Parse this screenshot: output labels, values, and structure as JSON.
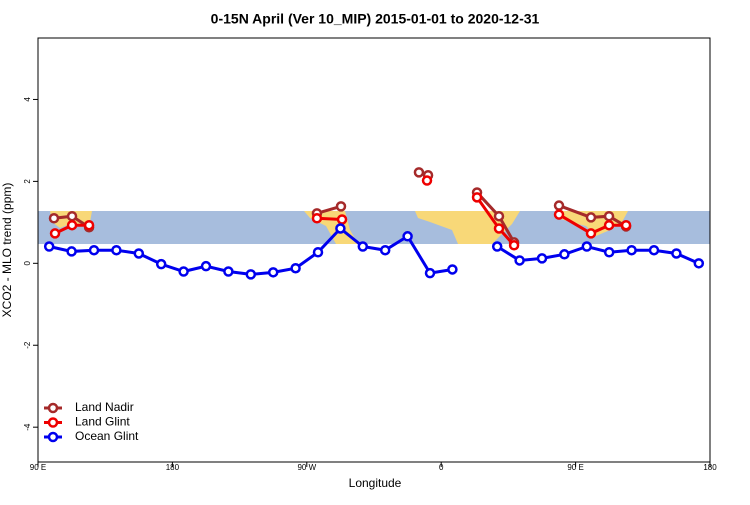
{
  "chart_data": {
    "type": "line",
    "title": "0-15N April (Ver 10_MIP)   2015-01-01 to 2020-12-31",
    "xlabel": "Longitude",
    "ylabel": "XCO2 - MLO trend (ppm)",
    "xlim": [
      90,
      540
    ],
    "xticks": [
      {
        "value": 90,
        "label": "90 E"
      },
      180,
      {
        "value": 270,
        "label": "90 W"
      },
      {
        "value": 360,
        "label": "0"
      },
      {
        "value": 450,
        "label": "90 E"
      },
      {
        "value": 540,
        "label": "180"
      }
    ],
    "ylim": [
      -4.85,
      5.5
    ],
    "yticks": [
      -4,
      -2,
      0,
      2,
      4
    ],
    "legend": "bottom-left",
    "series": [
      {
        "name": "Land Nadir",
        "color": "#a52a2a",
        "x": [
          100.7,
          112.8,
          124.2,
          null,
          276.8,
          292.9,
          null,
          345.1,
          351.2,
          null,
          384,
          398.7,
          408.8,
          null,
          438.9,
          460.3,
          472.4,
          483.8
        ],
        "values": [
          1.1,
          1.15,
          0.88,
          null,
          1.22,
          1.39,
          null,
          2.22,
          2.15,
          null,
          1.73,
          1.15,
          0.51,
          null,
          1.41,
          1.12,
          1.15,
          0.9
        ]
      },
      {
        "name": "Land Glint",
        "color": "#ee0000",
        "x": [
          101.4,
          112.8,
          124.2,
          null,
          276.8,
          293.6,
          null,
          350.5,
          null,
          384,
          398.7,
          408.8,
          null,
          438.9,
          460.3,
          472.4,
          483.8
        ],
        "values": [
          0.73,
          0.93,
          0.93,
          null,
          1.1,
          1.07,
          null,
          2.02,
          null,
          1.61,
          0.85,
          0.44,
          null,
          1.19,
          0.73,
          0.93,
          0.93
        ]
      },
      {
        "name": "Ocean Glint",
        "color": "#0000ee",
        "x": [
          97.5,
          112.5,
          127.5,
          142.5,
          157.5,
          172.5,
          187.5,
          202.5,
          217.5,
          232.5,
          247.5,
          262.5,
          277.5,
          292.5,
          307.5,
          322.5,
          337.5,
          352.5,
          367.5,
          null,
          397.5,
          412.5,
          427.5,
          442.5,
          457.5,
          472.5,
          487.5,
          502.5,
          517.5,
          532.5
        ],
        "values": [
          0.41,
          0.29,
          0.32,
          0.32,
          0.24,
          -0.02,
          -0.2,
          -0.07,
          -0.2,
          -0.27,
          -0.22,
          -0.12,
          0.27,
          0.85,
          0.41,
          0.32,
          0.66,
          -0.24,
          -0.15,
          null,
          0.41,
          0.07,
          0.12,
          0.22,
          0.41,
          0.27,
          0.32,
          0.32,
          0.24,
          0
        ]
      }
    ]
  }
}
